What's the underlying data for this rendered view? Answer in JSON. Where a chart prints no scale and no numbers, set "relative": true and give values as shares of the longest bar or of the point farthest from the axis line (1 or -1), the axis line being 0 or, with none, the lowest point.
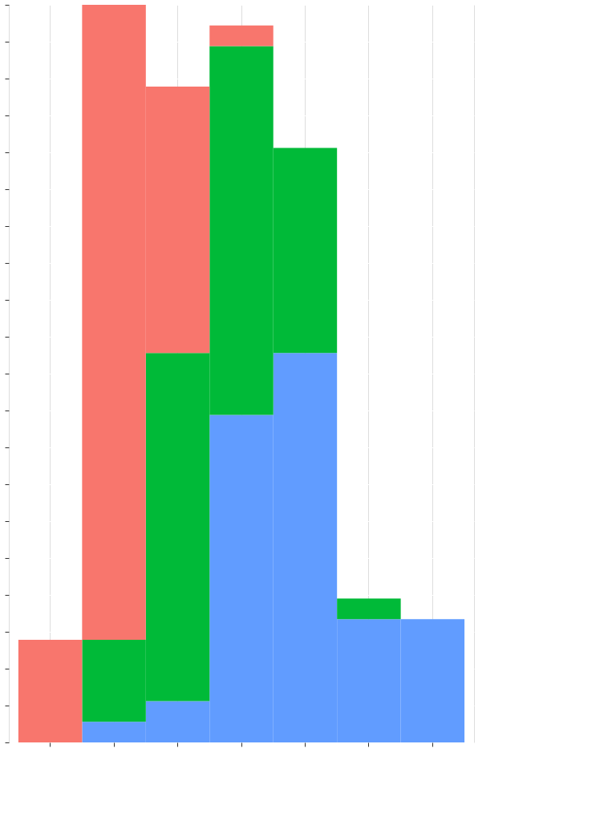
{
  "chart_data": {
    "type": "bar",
    "stacked": true,
    "relative": true,
    "grid": true,
    "categories": [
      null,
      null,
      null,
      null,
      null,
      null,
      null
    ],
    "series": [
      {
        "color": "#619cff",
        "values": [
          0,
          0.028,
          0.056,
          0.444,
          0.528,
          0.167,
          0.167
        ]
      },
      {
        "color": "#00ba38",
        "values": [
          0,
          0.111,
          0.472,
          0.5,
          0.278,
          0.028,
          0
        ]
      },
      {
        "color": "#f8766d",
        "values": [
          0.139,
          0.861,
          0.361,
          0.028,
          0,
          0,
          0
        ]
      }
    ]
  }
}
